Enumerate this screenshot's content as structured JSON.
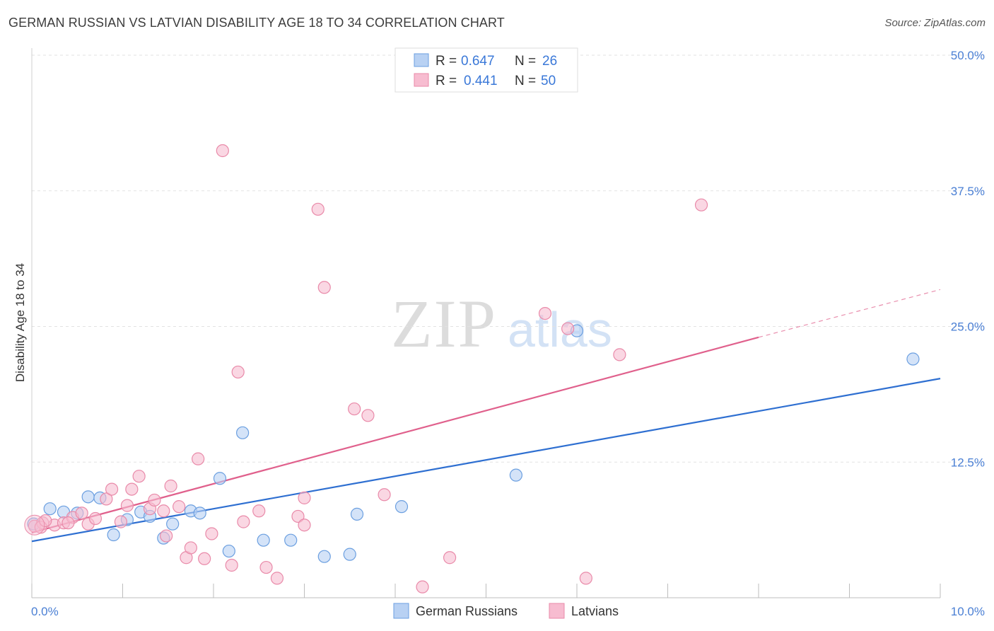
{
  "title": "GERMAN RUSSIAN VS LATVIAN DISABILITY AGE 18 TO 34 CORRELATION CHART",
  "source": "Source: ZipAtlas.com",
  "watermark": {
    "zip": "ZIP",
    "atlas": "atlas"
  },
  "chart_data": {
    "type": "scatter",
    "title": "GERMAN RUSSIAN VS LATVIAN DISABILITY AGE 18 TO 34 CORRELATION CHART",
    "xlabel": "",
    "ylabel": "Disability Age 18 to 34",
    "xlim": [
      0,
      10
    ],
    "ylim": [
      0,
      50
    ],
    "x_tick_labels": [
      "0.0%",
      "10.0%"
    ],
    "y_ticks": [
      12.5,
      25.0,
      37.5,
      50.0
    ],
    "y_tick_labels": [
      "12.5%",
      "25.0%",
      "37.5%",
      "50.0%"
    ],
    "grid": true,
    "legend": {
      "position": "top-center",
      "entries": [
        {
          "r_label": "R =",
          "r_value": "0.647",
          "n_label": "N =",
          "n_value": "26"
        },
        {
          "r_label": "R =",
          "r_value": "0.441",
          "n_label": "N =",
          "n_value": "50"
        }
      ]
    },
    "series": [
      {
        "name": "German Russians",
        "color": "#6b9fe0",
        "fill": "#b8d1f3",
        "line_color": "#2e6fd1",
        "trend": {
          "x0": 0,
          "y0": 5.2,
          "x1": 10,
          "y1": 20.2
        },
        "points": [
          [
            0.02,
            6.8
          ],
          [
            0.2,
            8.2
          ],
          [
            0.35,
            7.9
          ],
          [
            0.5,
            7.8
          ],
          [
            0.62,
            9.3
          ],
          [
            0.75,
            9.2
          ],
          [
            0.9,
            5.8
          ],
          [
            1.05,
            7.2
          ],
          [
            1.2,
            7.9
          ],
          [
            1.3,
            7.5
          ],
          [
            1.45,
            5.5
          ],
          [
            1.55,
            6.8
          ],
          [
            1.75,
            8.0
          ],
          [
            1.85,
            7.8
          ],
          [
            2.07,
            11.0
          ],
          [
            2.17,
            4.3
          ],
          [
            2.32,
            15.2
          ],
          [
            2.55,
            5.3
          ],
          [
            2.85,
            5.3
          ],
          [
            3.22,
            3.8
          ],
          [
            3.5,
            4.0
          ],
          [
            3.58,
            7.7
          ],
          [
            4.07,
            8.4
          ],
          [
            5.33,
            11.3
          ],
          [
            6.0,
            24.6
          ],
          [
            9.7,
            22.0
          ]
        ]
      },
      {
        "name": "Latvians",
        "color": "#e98aa9",
        "fill": "#f7bcd0",
        "line_color": "#e0608c",
        "trend": {
          "x0": 0,
          "y0": 6.0,
          "x1": 8.0,
          "y1": 24.0,
          "x_dash_end": 10.0,
          "y_dash_end": 28.4
        },
        "points": [
          [
            0.03,
            6.6
          ],
          [
            0.12,
            6.9
          ],
          [
            0.25,
            6.7
          ],
          [
            0.35,
            6.9
          ],
          [
            0.45,
            7.4
          ],
          [
            0.55,
            7.8
          ],
          [
            0.62,
            6.8
          ],
          [
            0.7,
            7.3
          ],
          [
            0.82,
            9.1
          ],
          [
            0.88,
            10.0
          ],
          [
            0.98,
            7.0
          ],
          [
            1.05,
            8.5
          ],
          [
            1.1,
            10.0
          ],
          [
            1.18,
            11.2
          ],
          [
            1.3,
            8.2
          ],
          [
            1.35,
            9.0
          ],
          [
            1.45,
            8.0
          ],
          [
            1.48,
            5.7
          ],
          [
            1.53,
            10.3
          ],
          [
            1.62,
            8.4
          ],
          [
            1.7,
            3.7
          ],
          [
            1.75,
            4.6
          ],
          [
            1.83,
            12.8
          ],
          [
            1.9,
            3.6
          ],
          [
            1.98,
            5.9
          ],
          [
            2.1,
            41.2
          ],
          [
            2.2,
            3.0
          ],
          [
            2.27,
            20.8
          ],
          [
            2.33,
            7.0
          ],
          [
            2.5,
            8.0
          ],
          [
            2.58,
            2.8
          ],
          [
            2.7,
            1.8
          ],
          [
            2.93,
            7.5
          ],
          [
            3.0,
            9.2
          ],
          [
            3.0,
            6.7
          ],
          [
            3.15,
            35.8
          ],
          [
            3.22,
            28.6
          ],
          [
            3.55,
            17.4
          ],
          [
            3.7,
            16.8
          ],
          [
            3.88,
            9.5
          ],
          [
            4.3,
            1.0
          ],
          [
            4.6,
            3.7
          ],
          [
            5.65,
            26.2
          ],
          [
            5.9,
            24.8
          ],
          [
            6.1,
            1.8
          ],
          [
            6.47,
            22.4
          ],
          [
            7.37,
            36.2
          ],
          [
            0.1,
            6.5
          ],
          [
            0.4,
            6.9
          ],
          [
            0.15,
            7.1
          ]
        ]
      }
    ]
  },
  "bottom_legend": {
    "items": [
      {
        "label": "German Russians",
        "fill": "#b8d1f3",
        "stroke": "#6b9fe0"
      },
      {
        "label": "Latvians",
        "fill": "#f7bcd0",
        "stroke": "#e98aa9"
      }
    ]
  }
}
